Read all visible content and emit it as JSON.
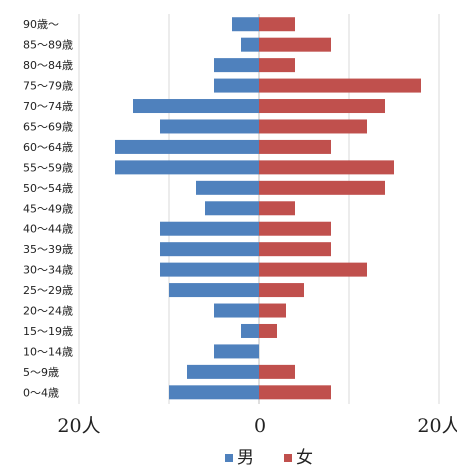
{
  "chart_data": {
    "type": "bar",
    "orientation": "horizontal",
    "chart_kind": "population pyramid",
    "categories": [
      "90歳～",
      "85～89歳",
      "80～84歳",
      "75～79歳",
      "70～74歳",
      "65～69歳",
      "60～64歳",
      "55～59歳",
      "50～54歳",
      "45～49歳",
      "40～44歳",
      "35～39歳",
      "30～34歳",
      "25～29歳",
      "20～24歳",
      "15～19歳",
      "10～14歳",
      "5～9歳",
      "0～4歳"
    ],
    "series": [
      {
        "name": "男",
        "color": "#4f81bd",
        "values": [
          3,
          2,
          5,
          5,
          14,
          11,
          16,
          16,
          7,
          6,
          11,
          11,
          11,
          10,
          5,
          2,
          5,
          8,
          10
        ]
      },
      {
        "name": "女",
        "color": "#c0504d",
        "values": [
          4,
          8,
          4,
          18,
          14,
          12,
          8,
          15,
          14,
          4,
          8,
          8,
          12,
          5,
          3,
          2,
          0,
          4,
          8
        ]
      }
    ],
    "x_tick_labels": [
      "20人",
      "0",
      "20人"
    ],
    "xlim": [
      -20,
      20
    ],
    "grid_values": [
      -20,
      -10,
      0,
      10,
      20
    ],
    "grid": true,
    "legend_position": "bottom",
    "title": "",
    "xlabel": "",
    "ylabel": ""
  }
}
